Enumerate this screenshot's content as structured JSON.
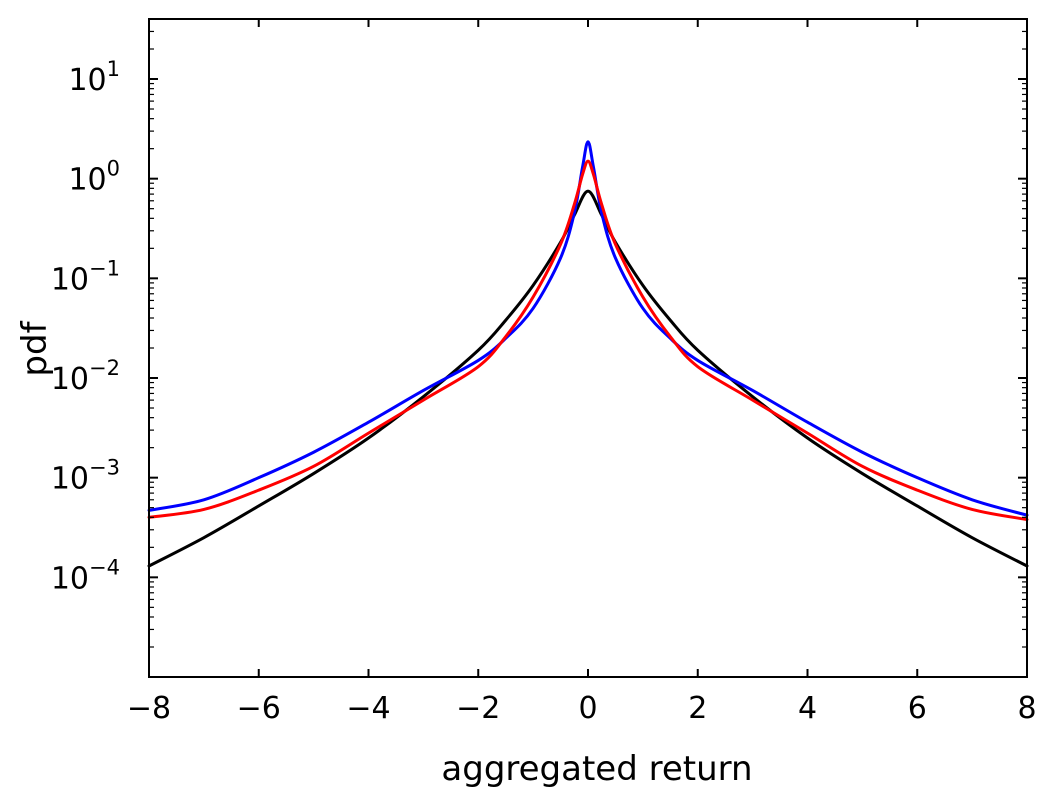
{
  "chart_data": {
    "type": "line",
    "title": "",
    "xlabel": "aggregated return",
    "ylabel": "pdf",
    "xlim": [
      -8,
      8
    ],
    "ylim": [
      1e-05,
      40
    ],
    "yscale": "log",
    "grid": false,
    "xticks": [
      -8,
      -6,
      -4,
      -2,
      0,
      2,
      4,
      6,
      8
    ],
    "xtick_labels": [
      "−8",
      "−6",
      "−4",
      "−2",
      "0",
      "2",
      "4",
      "6",
      "8"
    ],
    "yticks": [
      {
        "value": 10,
        "base": "10",
        "exp": "1"
      },
      {
        "value": 1,
        "base": "10",
        "exp": "0"
      },
      {
        "value": 0.1,
        "base": "10",
        "exp": "−1"
      },
      {
        "value": 0.01,
        "base": "10",
        "exp": "−2"
      },
      {
        "value": 0.001,
        "base": "10",
        "exp": "−3"
      },
      {
        "value": 0.0001,
        "base": "10",
        "exp": "−4"
      }
    ],
    "series": [
      {
        "color": "#000000",
        "x": [
          -8,
          -7,
          -6,
          -5,
          -4,
          -3,
          -2,
          -1.5,
          -1,
          -0.5,
          -0.25,
          0,
          0.25,
          0.5,
          1,
          1.5,
          2,
          3,
          4,
          5,
          6,
          7,
          8
        ],
        "y": [
          0.00013,
          0.00025,
          0.00052,
          0.0011,
          0.0025,
          0.0065,
          0.019,
          0.038,
          0.085,
          0.23,
          0.43,
          0.75,
          0.43,
          0.23,
          0.085,
          0.038,
          0.019,
          0.0065,
          0.0025,
          0.0011,
          0.00052,
          0.00025,
          0.00013
        ]
      },
      {
        "color": "#0000ff",
        "x": [
          -8,
          -7,
          -6,
          -5,
          -4,
          -3,
          -2,
          -1.5,
          -1,
          -0.5,
          -0.25,
          -0.1,
          0,
          0.1,
          0.25,
          0.5,
          1,
          1.5,
          2,
          3,
          4,
          5,
          6,
          7,
          8
        ],
        "y": [
          0.00047,
          0.0006,
          0.001,
          0.0018,
          0.0036,
          0.0075,
          0.015,
          0.025,
          0.05,
          0.16,
          0.45,
          1.3,
          2.35,
          1.3,
          0.45,
          0.16,
          0.05,
          0.025,
          0.015,
          0.0075,
          0.0036,
          0.0018,
          0.001,
          0.0006,
          0.00042
        ]
      },
      {
        "color": "#ff0000",
        "x": [
          -8,
          -7,
          -6,
          -5,
          -4,
          -3,
          -2,
          -1.5,
          -1,
          -0.5,
          -0.25,
          -0.1,
          0,
          0.1,
          0.25,
          0.5,
          1,
          1.5,
          2,
          3,
          4,
          5,
          6,
          7,
          8
        ],
        "y": [
          0.0004,
          0.00048,
          0.00075,
          0.0013,
          0.0028,
          0.006,
          0.013,
          0.026,
          0.065,
          0.22,
          0.55,
          1.1,
          1.5,
          1.1,
          0.55,
          0.22,
          0.065,
          0.026,
          0.013,
          0.006,
          0.0028,
          0.0013,
          0.00075,
          0.00048,
          0.00038
        ]
      }
    ]
  }
}
